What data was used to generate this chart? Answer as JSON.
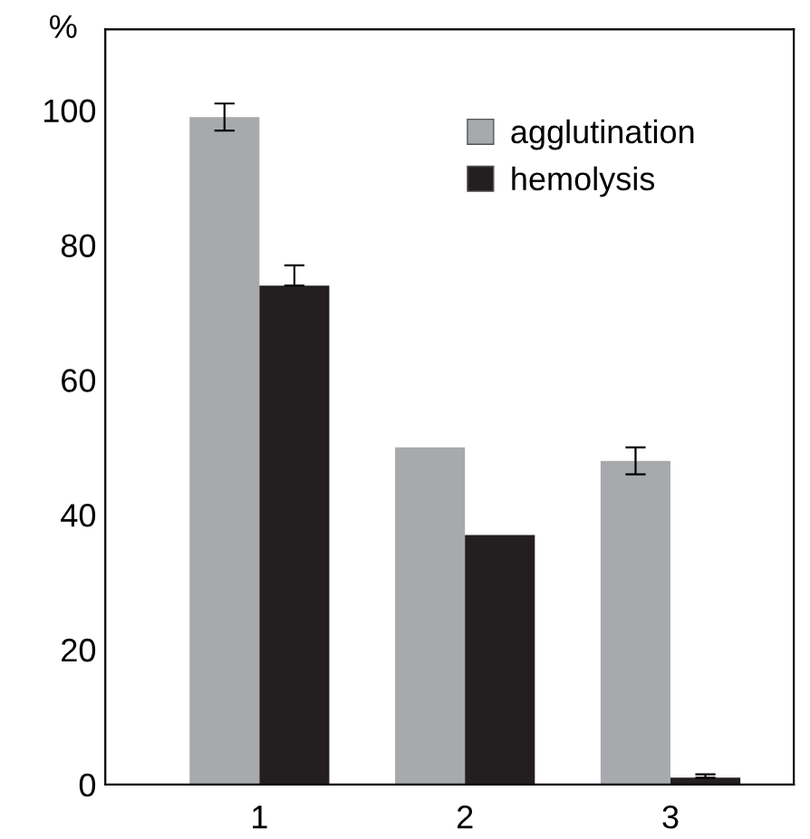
{
  "chart_data": {
    "type": "bar",
    "ylabel": "%",
    "categories": [
      "1",
      "2",
      "3"
    ],
    "series": [
      {
        "name": "agglutination",
        "color": "#a7a9ac",
        "values": [
          99,
          50,
          48
        ],
        "errors": [
          2,
          null,
          2
        ]
      },
      {
        "name": "hemolysis",
        "color": "#231f20",
        "values": [
          74,
          37,
          1
        ],
        "errors": [
          [
            74,
            77
          ],
          null,
          [
            1,
            1.5
          ]
        ]
      }
    ],
    "ylim": [
      0,
      112
    ],
    "yticks": [
      0,
      20,
      40,
      60,
      80,
      100
    ],
    "grid": false,
    "legend": "top right"
  }
}
